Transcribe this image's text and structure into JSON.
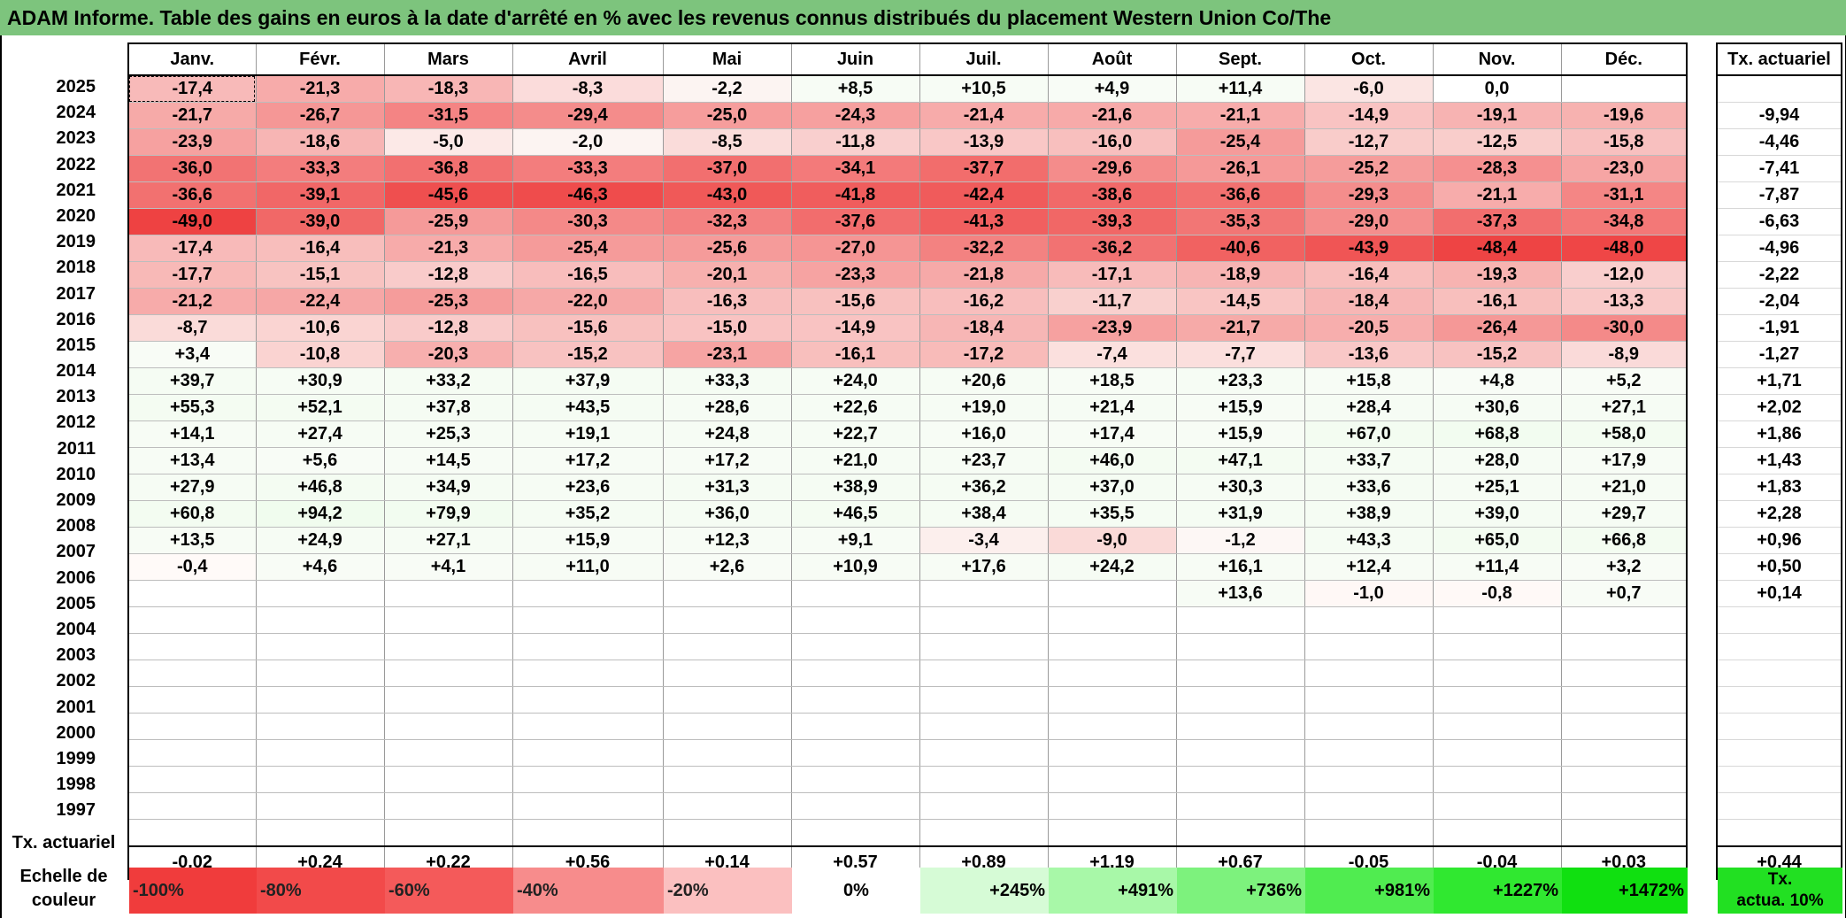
{
  "title": "ADAM Informe. Table des gains en euros à la date d'arrêté en % avec les revenus connus distribués du placement Western Union Co/The",
  "months": [
    "Janv.",
    "Févr.",
    "Mars",
    "Avril",
    "Mai",
    "Juin",
    "Juil.",
    "Août",
    "Sept.",
    "Oct.",
    "Nov.",
    "Déc."
  ],
  "side_header": "Tx. actuariel",
  "rows": [
    {
      "year": "2025",
      "values": [
        "-17,4",
        "-21,3",
        "-18,3",
        "-8,3",
        "-2,2",
        "+8,5",
        "+10,5",
        "+4,9",
        "+11,4",
        "-6,0",
        "0,0",
        ""
      ],
      "rate": ""
    },
    {
      "year": "2024",
      "values": [
        "-21,7",
        "-26,7",
        "-31,5",
        "-29,4",
        "-25,0",
        "-24,3",
        "-21,4",
        "-21,6",
        "-21,1",
        "-14,9",
        "-19,1",
        "-19,6"
      ],
      "rate": "-9,94"
    },
    {
      "year": "2023",
      "values": [
        "-23,9",
        "-18,6",
        "-5,0",
        "-2,0",
        "-8,5",
        "-11,8",
        "-13,9",
        "-16,0",
        "-25,4",
        "-12,7",
        "-12,5",
        "-15,8"
      ],
      "rate": "-4,46"
    },
    {
      "year": "2022",
      "values": [
        "-36,0",
        "-33,3",
        "-36,8",
        "-33,3",
        "-37,0",
        "-34,1",
        "-37,7",
        "-29,6",
        "-26,1",
        "-25,2",
        "-28,3",
        "-23,0"
      ],
      "rate": "-7,41"
    },
    {
      "year": "2021",
      "values": [
        "-36,6",
        "-39,1",
        "-45,6",
        "-46,3",
        "-43,0",
        "-41,8",
        "-42,4",
        "-38,6",
        "-36,6",
        "-29,3",
        "-21,1",
        "-31,1"
      ],
      "rate": "-7,87"
    },
    {
      "year": "2020",
      "values": [
        "-49,0",
        "-39,0",
        "-25,9",
        "-30,3",
        "-32,3",
        "-37,6",
        "-41,3",
        "-39,3",
        "-35,3",
        "-29,0",
        "-37,3",
        "-34,8"
      ],
      "rate": "-6,63"
    },
    {
      "year": "2019",
      "values": [
        "-17,4",
        "-16,4",
        "-21,3",
        "-25,4",
        "-25,6",
        "-27,0",
        "-32,2",
        "-36,2",
        "-40,6",
        "-43,9",
        "-48,4",
        "-48,0"
      ],
      "rate": "-4,96"
    },
    {
      "year": "2018",
      "values": [
        "-17,7",
        "-15,1",
        "-12,8",
        "-16,5",
        "-20,1",
        "-23,3",
        "-21,8",
        "-17,1",
        "-18,9",
        "-16,4",
        "-19,3",
        "-12,0"
      ],
      "rate": "-2,22"
    },
    {
      "year": "2017",
      "values": [
        "-21,2",
        "-22,4",
        "-25,3",
        "-22,0",
        "-16,3",
        "-15,6",
        "-16,2",
        "-11,7",
        "-14,5",
        "-18,4",
        "-16,1",
        "-13,3"
      ],
      "rate": "-2,04"
    },
    {
      "year": "2016",
      "values": [
        "-8,7",
        "-10,6",
        "-12,8",
        "-15,6",
        "-15,0",
        "-14,9",
        "-18,4",
        "-23,9",
        "-21,7",
        "-20,5",
        "-26,4",
        "-30,0"
      ],
      "rate": "-1,91"
    },
    {
      "year": "2015",
      "values": [
        "+3,4",
        "-10,8",
        "-20,3",
        "-15,2",
        "-23,1",
        "-16,1",
        "-17,2",
        "-7,4",
        "-7,7",
        "-13,6",
        "-15,2",
        "-8,9"
      ],
      "rate": "-1,27"
    },
    {
      "year": "2014",
      "values": [
        "+39,7",
        "+30,9",
        "+33,2",
        "+37,9",
        "+33,3",
        "+24,0",
        "+20,6",
        "+18,5",
        "+23,3",
        "+15,8",
        "+4,8",
        "+5,2"
      ],
      "rate": "+1,71"
    },
    {
      "year": "2013",
      "values": [
        "+55,3",
        "+52,1",
        "+37,8",
        "+43,5",
        "+28,6",
        "+22,6",
        "+19,0",
        "+21,4",
        "+15,9",
        "+28,4",
        "+30,6",
        "+27,1"
      ],
      "rate": "+2,02"
    },
    {
      "year": "2012",
      "values": [
        "+14,1",
        "+27,4",
        "+25,3",
        "+19,1",
        "+24,8",
        "+22,7",
        "+16,0",
        "+17,4",
        "+15,9",
        "+67,0",
        "+68,8",
        "+58,0"
      ],
      "rate": "+1,86"
    },
    {
      "year": "2011",
      "values": [
        "+13,4",
        "+5,6",
        "+14,5",
        "+17,2",
        "+17,2",
        "+21,0",
        "+23,7",
        "+46,0",
        "+47,1",
        "+33,7",
        "+28,0",
        "+17,9"
      ],
      "rate": "+1,43"
    },
    {
      "year": "2010",
      "values": [
        "+27,9",
        "+46,8",
        "+34,9",
        "+23,6",
        "+31,3",
        "+38,9",
        "+36,2",
        "+37,0",
        "+30,3",
        "+33,6",
        "+25,1",
        "+21,0"
      ],
      "rate": "+1,83"
    },
    {
      "year": "2009",
      "values": [
        "+60,8",
        "+94,2",
        "+79,9",
        "+35,2",
        "+36,0",
        "+46,5",
        "+38,4",
        "+35,5",
        "+31,9",
        "+38,9",
        "+39,0",
        "+29,7"
      ],
      "rate": "+2,28"
    },
    {
      "year": "2008",
      "values": [
        "+13,5",
        "+24,9",
        "+27,1",
        "+15,9",
        "+12,3",
        "+9,1",
        "-3,4",
        "-9,0",
        "-1,2",
        "+43,3",
        "+65,0",
        "+66,8"
      ],
      "rate": "+0,96"
    },
    {
      "year": "2007",
      "values": [
        "-0,4",
        "+4,6",
        "+4,1",
        "+11,0",
        "+2,6",
        "+10,9",
        "+17,6",
        "+24,2",
        "+16,1",
        "+12,4",
        "+11,4",
        "+3,2"
      ],
      "rate": "+0,50"
    },
    {
      "year": "2006",
      "values": [
        "",
        "",
        "",
        "",
        "",
        "",
        "",
        "",
        "+13,6",
        "-1,0",
        "-0,8",
        "+0,7"
      ],
      "rate": "+0,14"
    },
    {
      "year": "2005",
      "values": [
        "",
        "",
        "",
        "",
        "",
        "",
        "",
        "",
        "",
        "",
        "",
        ""
      ],
      "rate": ""
    },
    {
      "year": "2004",
      "values": [
        "",
        "",
        "",
        "",
        "",
        "",
        "",
        "",
        "",
        "",
        "",
        ""
      ],
      "rate": ""
    },
    {
      "year": "2003",
      "values": [
        "",
        "",
        "",
        "",
        "",
        "",
        "",
        "",
        "",
        "",
        "",
        ""
      ],
      "rate": ""
    },
    {
      "year": "2002",
      "values": [
        "",
        "",
        "",
        "",
        "",
        "",
        "",
        "",
        "",
        "",
        "",
        ""
      ],
      "rate": ""
    },
    {
      "year": "2001",
      "values": [
        "",
        "",
        "",
        "",
        "",
        "",
        "",
        "",
        "",
        "",
        "",
        ""
      ],
      "rate": ""
    },
    {
      "year": "2000",
      "values": [
        "",
        "",
        "",
        "",
        "",
        "",
        "",
        "",
        "",
        "",
        "",
        ""
      ],
      "rate": ""
    },
    {
      "year": "1999",
      "values": [
        "",
        "",
        "",
        "",
        "",
        "",
        "",
        "",
        "",
        "",
        "",
        ""
      ],
      "rate": ""
    },
    {
      "year": "1998",
      "values": [
        "",
        "",
        "",
        "",
        "",
        "",
        "",
        "",
        "",
        "",
        "",
        ""
      ],
      "rate": ""
    },
    {
      "year": "1997",
      "values": [
        "",
        "",
        "",
        "",
        "",
        "",
        "",
        "",
        "",
        "",
        "",
        ""
      ],
      "rate": ""
    }
  ],
  "footer": {
    "label": "Tx. actuariel",
    "values": [
      "-0,02",
      "+0,24",
      "+0,22",
      "+0,56",
      "+0,14",
      "+0,57",
      "+0,89",
      "+1,19",
      "+0,67",
      "-0,05",
      "-0,04",
      "+0,03"
    ],
    "total": "+0,44"
  },
  "scale": {
    "label_line1": "Echelle de",
    "label_line2": "couleur",
    "items": [
      {
        "label": "-100%",
        "color": "#f03c3c"
      },
      {
        "label": "-80%",
        "color": "#f24a4a"
      },
      {
        "label": "-60%",
        "color": "#f45a5a"
      },
      {
        "label": "-40%",
        "color": "#f78c8c"
      },
      {
        "label": "-20%",
        "color": "#fbc0c0"
      },
      {
        "label": "0%",
        "color": "#ffffff"
      },
      {
        "label": "+245%",
        "color": "#d6fbd6"
      },
      {
        "label": "+491%",
        "color": "#a8f8a8"
      },
      {
        "label": "+736%",
        "color": "#7df27d"
      },
      {
        "label": "+981%",
        "color": "#50ec50"
      },
      {
        "label": "+1227%",
        "color": "#30e830"
      },
      {
        "label": "+1472%",
        "color": "#10e010"
      }
    ],
    "side_line1": "Tx.",
    "side_line2": "actua. 10%",
    "side_color": "#22e022"
  }
}
